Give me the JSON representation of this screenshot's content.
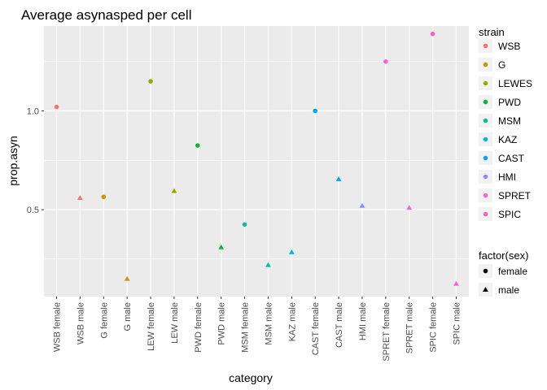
{
  "chart_data": {
    "type": "scatter",
    "title": "Average asynasped per cell",
    "xlabel": "category",
    "ylabel": "prop.asyn",
    "categories": [
      "WSB female",
      "WSB male",
      "G female",
      "G male",
      "LEW female",
      "LEW male",
      "PWD female",
      "PWD male",
      "MSM female",
      "MSM male",
      "KAZ male",
      "CAST female",
      "CAST male",
      "HMI male",
      "SPRET female",
      "SPRET male",
      "SPIC female",
      "SPIC male"
    ],
    "y_ticks": [
      0.5,
      1.0
    ],
    "y_tick_labels": [
      "0.5",
      "1.0"
    ],
    "ylim": [
      0.06,
      1.43
    ],
    "grid": true,
    "legend_placement": "right",
    "points": [
      {
        "category": "WSB female",
        "y": 1.02,
        "strain": "WSB",
        "sex": "female"
      },
      {
        "category": "WSB male",
        "y": 0.56,
        "strain": "WSB",
        "sex": "male"
      },
      {
        "category": "G female",
        "y": 0.565,
        "strain": "G",
        "sex": "female"
      },
      {
        "category": "G male",
        "y": 0.15,
        "strain": "G",
        "sex": "male"
      },
      {
        "category": "LEW female",
        "y": 1.15,
        "strain": "LEWES",
        "sex": "female"
      },
      {
        "category": "LEW male",
        "y": 0.595,
        "strain": "LEWES",
        "sex": "male"
      },
      {
        "category": "PWD female",
        "y": 0.825,
        "strain": "PWD",
        "sex": "female"
      },
      {
        "category": "PWD male",
        "y": 0.31,
        "strain": "PWD",
        "sex": "male"
      },
      {
        "category": "MSM female",
        "y": 0.425,
        "strain": "MSM",
        "sex": "female"
      },
      {
        "category": "MSM male",
        "y": 0.22,
        "strain": "MSM",
        "sex": "male"
      },
      {
        "category": "KAZ male",
        "y": 0.285,
        "strain": "KAZ",
        "sex": "male"
      },
      {
        "category": "CAST female",
        "y": 1.0,
        "strain": "CAST",
        "sex": "female"
      },
      {
        "category": "CAST male",
        "y": 0.655,
        "strain": "CAST",
        "sex": "male"
      },
      {
        "category": "HMI male",
        "y": 0.52,
        "strain": "HMI",
        "sex": "male"
      },
      {
        "category": "SPRET female",
        "y": 1.25,
        "strain": "SPRET",
        "sex": "female"
      },
      {
        "category": "SPRET male",
        "y": 0.51,
        "strain": "SPRET",
        "sex": "male"
      },
      {
        "category": "SPIC female",
        "y": 1.39,
        "strain": "SPIC",
        "sex": "female"
      },
      {
        "category": "SPIC male",
        "y": 0.125,
        "strain": "SPIC",
        "sex": "male"
      }
    ],
    "legend_strain": {
      "title": "strain",
      "entries": [
        {
          "label": "WSB",
          "color": "#F8766D"
        },
        {
          "label": "G",
          "color": "#D39200"
        },
        {
          "label": "LEWES",
          "color": "#93AA00"
        },
        {
          "label": "PWD",
          "color": "#00BA38"
        },
        {
          "label": "MSM",
          "color": "#00C19F"
        },
        {
          "label": "KAZ",
          "color": "#00B9E3"
        },
        {
          "label": "CAST",
          "color": "#00A5FF"
        },
        {
          "label": "HMI",
          "color": "#8F8CFF"
        },
        {
          "label": "SPRET",
          "color": "#F564E3"
        },
        {
          "label": "SPIC",
          "color": "#FF61C3"
        }
      ]
    },
    "legend_sex": {
      "title": "factor(sex)",
      "entries": [
        {
          "label": "female",
          "shape": "circle"
        },
        {
          "label": "male",
          "shape": "triangle"
        }
      ]
    }
  }
}
